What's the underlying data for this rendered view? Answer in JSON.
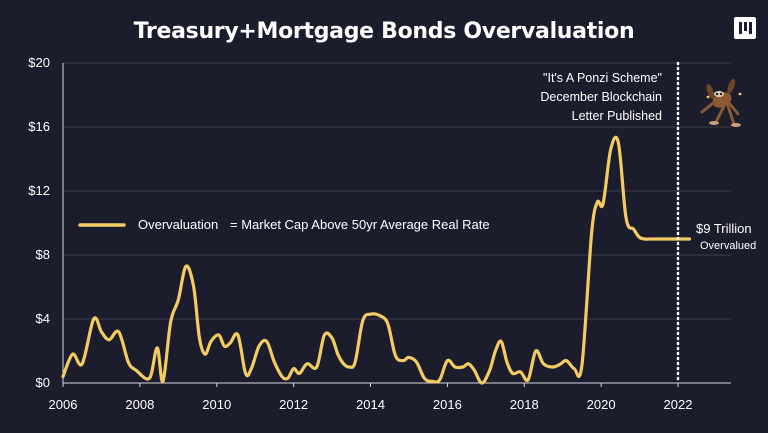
{
  "title": "Treasury+Mortgage Bonds Overvaluation",
  "colors": {
    "background": "#1b1c2c",
    "series": "#f2cb63",
    "text": "#ffffff",
    "grid": "#3c3d50"
  },
  "logo_icon": "pillar-logo-icon",
  "annotation_icon": "cartoon-coyote-icon",
  "chart_data": {
    "type": "line",
    "title": "Treasury+Mortgage Bonds Overvaluation",
    "xlabel": "",
    "ylabel": "",
    "xlim": [
      2006,
      2023.3
    ],
    "ylim": [
      0,
      20
    ],
    "grid": true,
    "legend_position": "center-left",
    "x_ticks": [
      2006,
      2008,
      2010,
      2012,
      2014,
      2016,
      2018,
      2020,
      2022
    ],
    "x_tick_labels": [
      "2006",
      "2008",
      "2010",
      "2012",
      "2014",
      "2016",
      "2018",
      "2020",
      "2022"
    ],
    "y_ticks": [
      0,
      4,
      8,
      12,
      16,
      20
    ],
    "y_tick_labels": [
      "$0",
      "$4",
      "$8",
      "$12",
      "$16",
      "$20"
    ],
    "series": [
      {
        "name": "Overvaluation",
        "legend_note": "= Market Cap Above 50yr Average Real Rate",
        "color": "#f2cb63",
        "x": [
          2006.0,
          2006.25,
          2006.5,
          2006.8,
          2007.0,
          2007.2,
          2007.45,
          2007.7,
          2007.9,
          2008.25,
          2008.45,
          2008.6,
          2008.8,
          2009.0,
          2009.2,
          2009.4,
          2009.55,
          2009.7,
          2009.85,
          2010.05,
          2010.2,
          2010.35,
          2010.55,
          2010.75,
          2010.9,
          2011.1,
          2011.3,
          2011.5,
          2011.7,
          2011.85,
          2012.0,
          2012.15,
          2012.35,
          2012.6,
          2012.8,
          2013.0,
          2013.15,
          2013.3,
          2013.45,
          2013.6,
          2013.8,
          2014.0,
          2014.25,
          2014.45,
          2014.65,
          2014.85,
          2015.0,
          2015.2,
          2015.4,
          2015.6,
          2015.8,
          2016.0,
          2016.2,
          2016.4,
          2016.55,
          2016.7,
          2016.9,
          2017.1,
          2017.25,
          2017.4,
          2017.55,
          2017.7,
          2017.9,
          2018.1,
          2018.3,
          2018.5,
          2018.75,
          2018.95,
          2019.1,
          2019.3,
          2019.5,
          2019.75,
          2019.9,
          2020.05,
          2020.25,
          2020.45,
          2020.65,
          2020.85,
          2021.0,
          2021.15,
          2021.3,
          2021.5,
          2021.65,
          2021.8,
          2021.95,
          2022.05,
          2022.15,
          2022.3
        ],
        "values": [
          0.4,
          1.8,
          1.2,
          4.0,
          3.2,
          2.7,
          3.2,
          1.3,
          0.8,
          0.3,
          2.2,
          0.1,
          3.8,
          5.2,
          7.3,
          6.0,
          2.8,
          1.8,
          2.6,
          3.0,
          2.3,
          2.5,
          3.0,
          0.6,
          0.9,
          2.3,
          2.6,
          1.3,
          0.4,
          0.3,
          0.9,
          0.6,
          1.2,
          1.0,
          3.0,
          2.8,
          1.8,
          1.2,
          1.0,
          1.3,
          3.9,
          4.3,
          4.2,
          3.7,
          1.7,
          1.4,
          1.6,
          1.3,
          0.3,
          0.1,
          0.2,
          1.4,
          1.0,
          1.0,
          1.2,
          0.8,
          0.0,
          0.8,
          2.0,
          2.6,
          1.3,
          0.6,
          0.7,
          0.2,
          2.0,
          1.2,
          1.0,
          1.2,
          1.4,
          0.9,
          1.1,
          9.3,
          11.3,
          11.2,
          14.6,
          15.0,
          10.3,
          9.6,
          9.1,
          9.0,
          9.0,
          9.0,
          9.0,
          9.0,
          9.0,
          9.0,
          9.0,
          9.0
        ]
      }
    ],
    "annotations": [
      {
        "lines": [
          "\"It's A Ponzi Scheme\"",
          "December Blockchain",
          "Letter Published"
        ],
        "x": 2022.0
      },
      {
        "lines": [
          "$9 Trillion",
          "Overvalued"
        ]
      }
    ],
    "vertical_marker": {
      "x": 2022.0,
      "style": "dotted"
    }
  }
}
